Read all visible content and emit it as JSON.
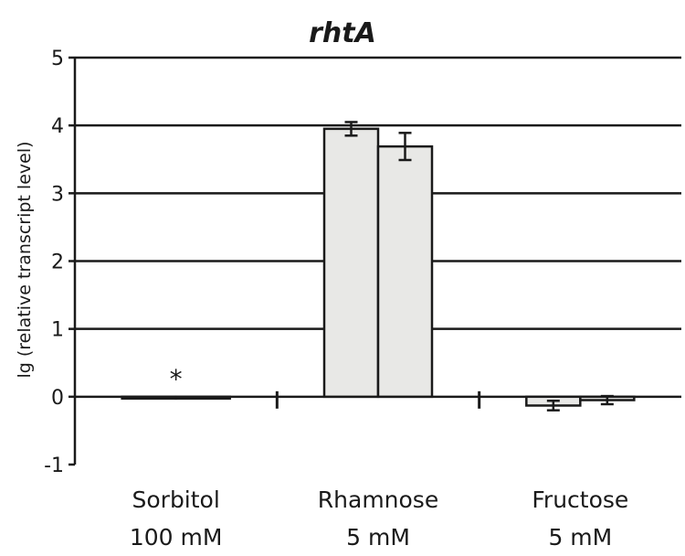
{
  "chart_data": {
    "type": "bar",
    "title": "rhtA",
    "ylabel": "lg (relative transcript level)",
    "xlabel": "",
    "ylim": [
      -1,
      5
    ],
    "yticks": [
      -1,
      0,
      1,
      2,
      3,
      4,
      5
    ],
    "grid": true,
    "legend": "none",
    "categories": [
      {
        "name": "Sorbitol",
        "concentration": "100 mM"
      },
      {
        "name": "Rhamnose",
        "concentration": "5 mM"
      },
      {
        "name": "Fructose",
        "concentration": "5 mM"
      }
    ],
    "series": [
      {
        "values": [
          0.0,
          3.95,
          -0.13
        ],
        "errors": [
          0.0,
          0.1,
          0.07
        ]
      },
      {
        "values": [
          0.0,
          3.69,
          -0.05
        ],
        "errors": [
          0.0,
          0.2,
          0.06
        ]
      }
    ],
    "annotations": [
      {
        "category": 0,
        "text": "*"
      }
    ],
    "colors": {
      "bar_fill": "#e8e8e6",
      "bar_stroke": "#1a1a1a",
      "grid": "#1a1a1a"
    }
  }
}
